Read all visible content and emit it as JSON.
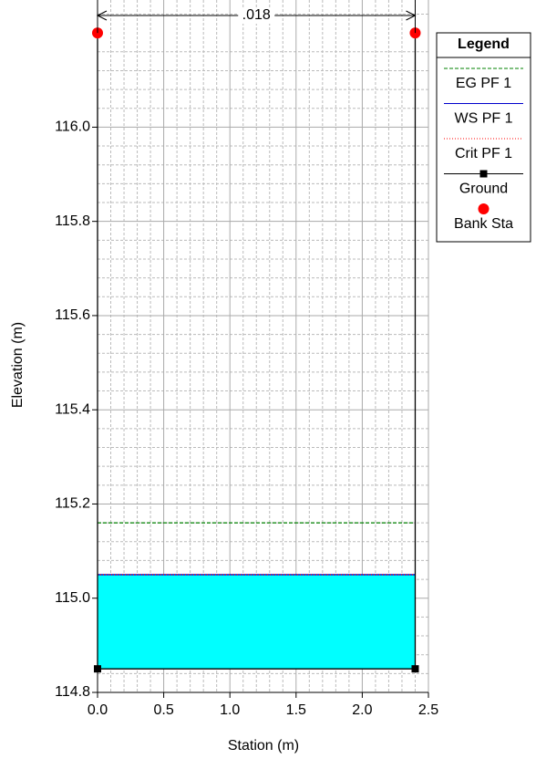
{
  "chart_data": {
    "type": "line",
    "x_label": "Station (m)",
    "y_label": "Elevation (m)",
    "xlim": [
      0,
      2.5
    ],
    "ylim": [
      114.8,
      116.27
    ],
    "xticks": [
      {
        "value": 0,
        "label": "0.0"
      },
      0.5,
      {
        "value": 1,
        "label": "1.0"
      },
      1.5,
      {
        "value": 2,
        "label": "2.0"
      },
      2.5
    ],
    "yticks": [
      114.8,
      {
        "value": 115,
        "label": "115.0"
      },
      115.2,
      115.4,
      115.6,
      115.8,
      {
        "value": 116,
        "label": "116.0"
      }
    ],
    "grid": true,
    "minor_grid": true,
    "legend_title": "Legend",
    "legend": "right",
    "annotation": {
      "text": ".018",
      "x": [
        0,
        2.4
      ]
    },
    "water_fill_color": "#00ffff",
    "series": [
      {
        "name": "EG PF 1",
        "color": "#008000",
        "style": "dashed",
        "x": [
          0,
          2.4
        ],
        "values": [
          115.16,
          115.16
        ]
      },
      {
        "name": "WS PF 1",
        "color": "#0000cc",
        "style": "solid",
        "x": [
          0,
          2.4
        ],
        "values": [
          115.05,
          115.05
        ]
      },
      {
        "name": "Crit PF 1",
        "color": "#ff0000",
        "style": "dotted",
        "x": [
          0,
          2.4
        ],
        "values": [
          115.05,
          115.05
        ]
      },
      {
        "name": "Ground",
        "color": "#000000",
        "style": "solid",
        "marker": "square",
        "x": [
          0,
          0,
          2.4,
          2.4
        ],
        "values": [
          116.2,
          114.85,
          114.85,
          116.2
        ]
      },
      {
        "name": "Bank Sta",
        "color": "#ff0000",
        "style": "none",
        "marker": "circle",
        "x": [
          0,
          2.4
        ],
        "values": [
          116.2,
          116.2
        ]
      }
    ]
  }
}
